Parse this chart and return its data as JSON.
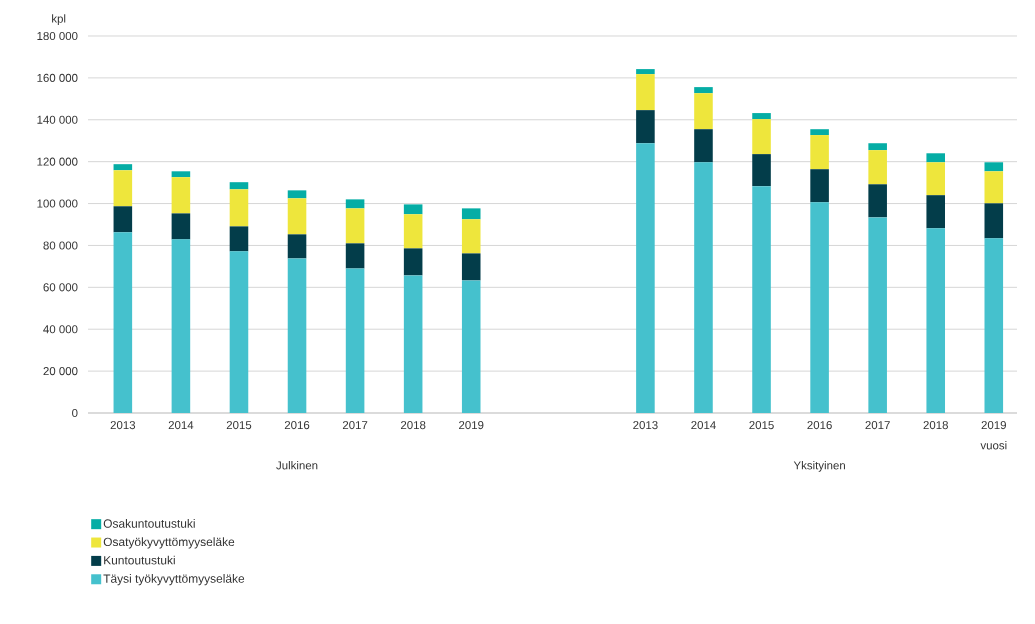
{
  "chart_data": {
    "type": "bar",
    "stacked": true,
    "categories": [
      "2013",
      "2014",
      "2015",
      "2016",
      "2017",
      "2018",
      "2019",
      null,
      null,
      "2013",
      "2014",
      "2015",
      "2016",
      "2017",
      "2018",
      "2019"
    ],
    "series": [
      {
        "name": "Täysi työkyvyttömyyseläke",
        "color": "#45c1cd",
        "values": [
          86300,
          82900,
          77200,
          73800,
          69000,
          65700,
          63300,
          null,
          null,
          128800,
          119700,
          108300,
          100600,
          93400,
          88200,
          83400
        ]
      },
      {
        "name": "Kuntoutustuki",
        "color": "#033d4a",
        "values": [
          12400,
          12400,
          11900,
          11500,
          12000,
          12900,
          12900,
          null,
          null,
          15800,
          15800,
          15300,
          15800,
          15800,
          15800,
          16700
        ]
      },
      {
        "name": "Osatyökyvyttömyyseläke",
        "color": "#eee63c",
        "values": [
          17200,
          17300,
          17700,
          17200,
          16700,
          16300,
          16300,
          null,
          null,
          17200,
          17200,
          16700,
          16300,
          16300,
          15700,
          15300
        ]
      },
      {
        "name": "Osakuntoutustuki",
        "color": "#05ada5",
        "values": [
          2900,
          2800,
          3400,
          3800,
          4300,
          4700,
          5200,
          null,
          null,
          2400,
          2900,
          2900,
          2800,
          3300,
          4300,
          4300
        ]
      }
    ],
    "ylabel": "kpl",
    "xlabel": "vuosi",
    "annotations": [
      "Julkinen",
      "Yksityinen"
    ],
    "ylim": [
      0,
      180000
    ],
    "yticks": [
      0,
      {
        "value": 20000,
        "label": "20 000"
      },
      {
        "value": 40000,
        "label": "40 000"
      },
      {
        "value": 60000,
        "label": "60 000"
      },
      {
        "value": 80000,
        "label": "80 000"
      },
      {
        "value": 100000,
        "label": "100 000"
      },
      {
        "value": 120000,
        "label": "120 000"
      },
      {
        "value": 140000,
        "label": "140 000"
      },
      {
        "value": 160000,
        "label": "160 000"
      },
      {
        "value": 180000,
        "label": "180 000"
      }
    ],
    "grid": "y",
    "legend": "bottom left"
  }
}
